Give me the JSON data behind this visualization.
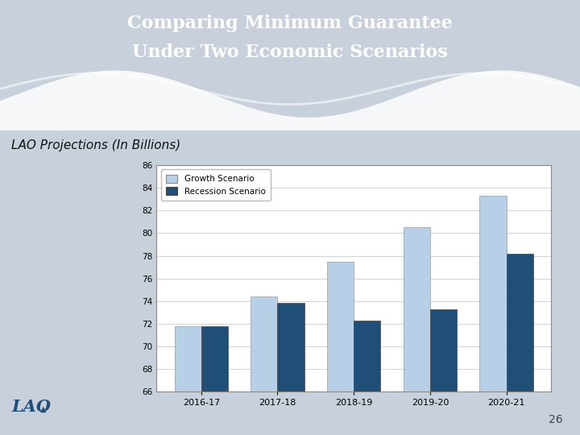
{
  "title_line1": "Comparing Minimum Guarantee",
  "title_line2": "Under Two Economic Scenarios",
  "subtitle": "LAO Projections (In Billions)",
  "categories": [
    "2016-17",
    "2017-18",
    "2018-19",
    "2019-20",
    "2020-21"
  ],
  "growth_values": [
    71.8,
    74.4,
    77.5,
    80.5,
    83.3
  ],
  "recession_values": [
    71.8,
    73.8,
    72.3,
    73.3,
    78.2
  ],
  "growth_color": "#b8cfe8",
  "recession_color": "#1f4e79",
  "ylim_min": 66,
  "ylim_max": 86,
  "yticks": [
    66,
    68,
    70,
    72,
    74,
    76,
    78,
    80,
    82,
    84,
    86
  ],
  "legend_growth": "Growth Scenario",
  "legend_recession": "Recession Scenario",
  "header_bg_color": "#4e6b8a",
  "body_bg_color": "#c8d0dc",
  "chart_bg_color": "#ffffff",
  "page_number": "26",
  "bar_width": 0.35
}
